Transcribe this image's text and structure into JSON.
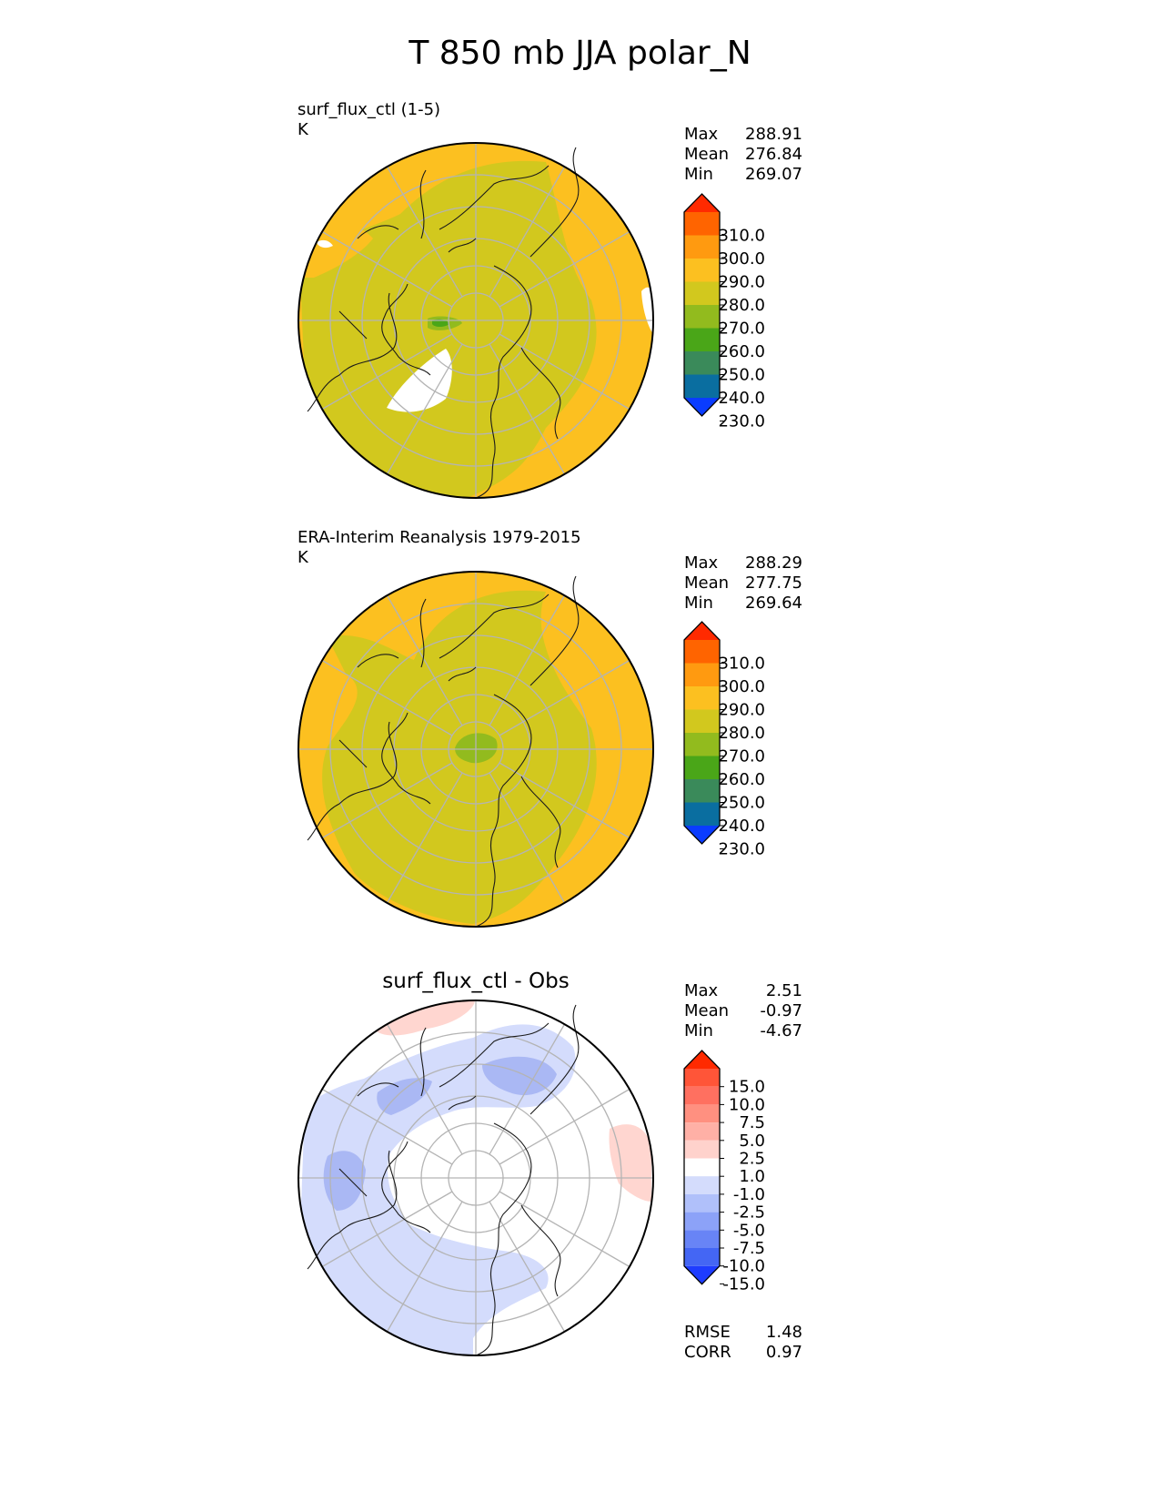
{
  "figure_title": "T 850 mb JJA polar_N",
  "panels": [
    {
      "name": "surf_flux_ctl (1-5)",
      "units": "K",
      "stats": [
        {
          "label": "Max",
          "value": "288.91"
        },
        {
          "label": "Mean",
          "value": "276.84"
        },
        {
          "label": "Min",
          "value": "269.07"
        }
      ]
    },
    {
      "name": "ERA-Interim Reanalysis 1979-2015",
      "units": "K",
      "stats": [
        {
          "label": "Max",
          "value": "288.29"
        },
        {
          "label": "Mean",
          "value": "277.75"
        },
        {
          "label": "Min",
          "value": "269.64"
        }
      ]
    },
    {
      "name": "surf_flux_ctl - Obs",
      "stats": [
        {
          "label": "Max",
          "value": "2.51"
        },
        {
          "label": "Mean",
          "value": "-0.97"
        },
        {
          "label": "Min",
          "value": "-4.67"
        }
      ],
      "metrics": [
        {
          "label": "RMSE",
          "value": "1.48"
        },
        {
          "label": "CORR",
          "value": "0.97"
        }
      ]
    }
  ],
  "colorbars": {
    "field": {
      "ticks": [
        "310.0",
        "300.0",
        "290.0",
        "280.0",
        "270.0",
        "260.0",
        "250.0",
        "240.0",
        "230.0"
      ],
      "colors_top_to_bottom": [
        "#ff2a00",
        "#ff6400",
        "#ff9a10",
        "#fcc020",
        "#d2c81e",
        "#92bb1e",
        "#4aa618",
        "#3a8a5a",
        "#0a6ea0",
        "#0a3cff"
      ]
    },
    "diff": {
      "ticks": [
        "15.0",
        "10.0",
        "7.5",
        "5.0",
        "2.5",
        "1.0",
        "-1.0",
        "-2.5",
        "-5.0",
        "-7.5",
        "-10.0",
        "-15.0"
      ],
      "colors_top_to_bottom": [
        "#ff2a00",
        "#ff5538",
        "#ff7060",
        "#ff9080",
        "#ffb0a6",
        "#ffd2cc",
        "#ffffff",
        "#d4dcfc",
        "#b0c0fa",
        "#8ca2f8",
        "#6884f6",
        "#4466f4",
        "#1e3cff"
      ]
    }
  },
  "map_colors": {
    "warm": "#fcc020",
    "mid": "#d2c81e",
    "cool": "#92bb1e",
    "diff_neg1": "#d4dcfc",
    "diff_neg2": "#aab8f4",
    "diff_pos1": "#ffd6d0"
  }
}
